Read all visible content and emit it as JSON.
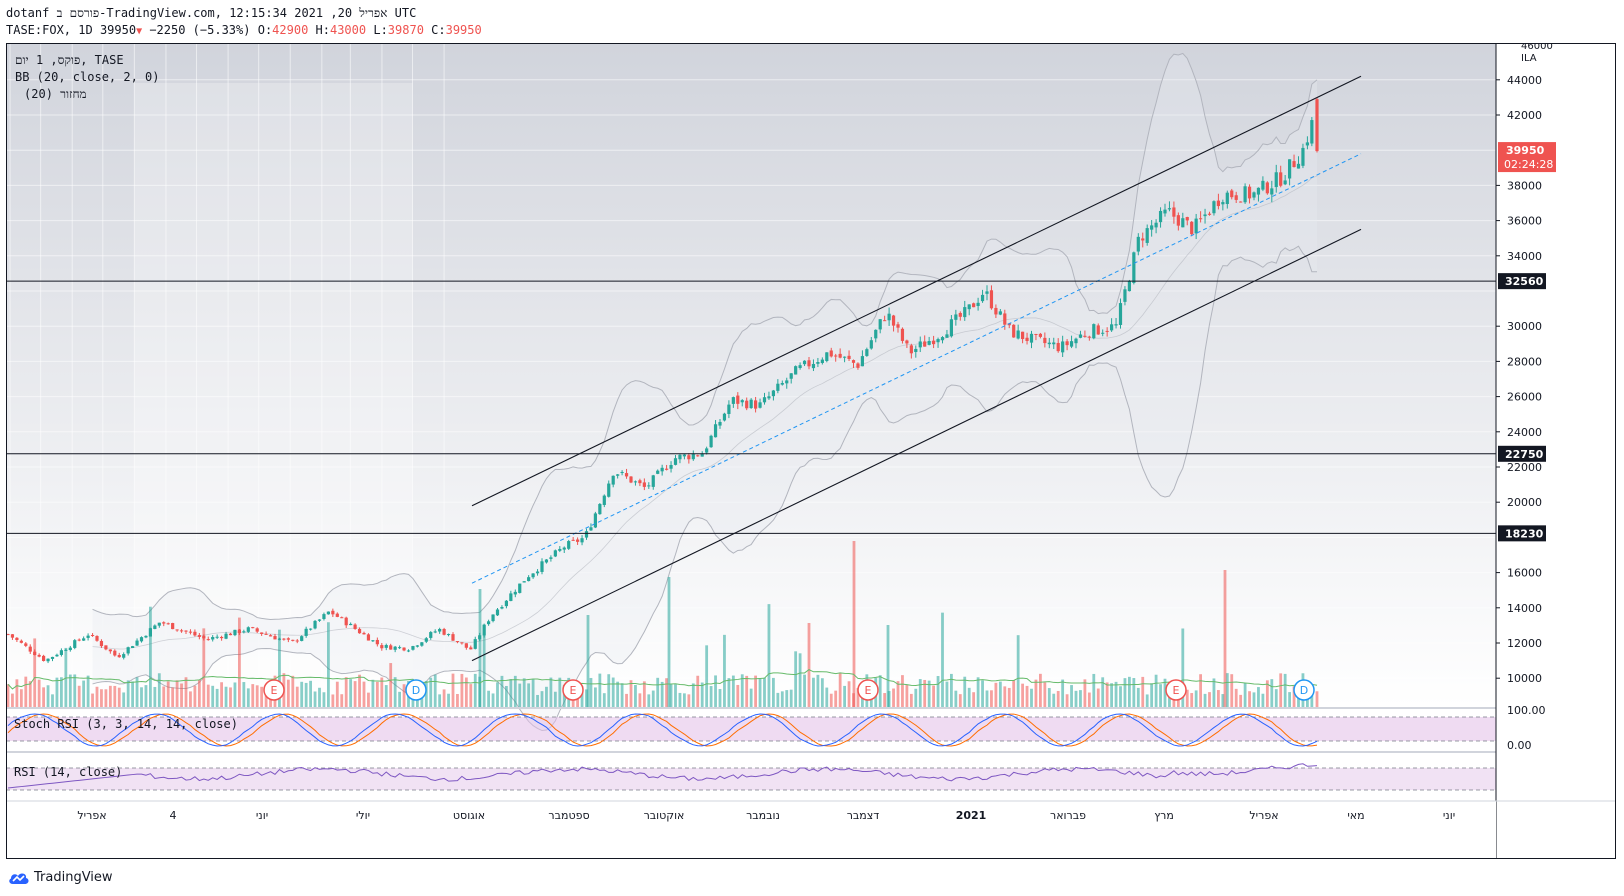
{
  "header": {
    "line1": "dotanf פורסם ב-TradingView.com, אפריל 20, 2021 12:15:34 UTC",
    "symbol": "TASE:FOX, 1D",
    "last": "39950",
    "change": "−2250 (−5.33%)",
    "o_label": "O:",
    "o": "42900",
    "h_label": "H:",
    "h": "43000",
    "l_label": "L:",
    "l": "39870",
    "c_label": "C:",
    "c": "39950"
  },
  "legend": {
    "line1": "פוקס, 1 יום, TASE",
    "line2": "BB (20, close, 2, 0)",
    "line3": "מחזור (20)"
  },
  "indicators": {
    "stoch_label": "Stoch RSI (3, 3, 14, 14, close)",
    "rsi_label": "RSI (14, close)",
    "stoch_ticks": [
      "100.00",
      "0.00"
    ]
  },
  "price_axis": {
    "currency": "ILA",
    "top_partial": "46000",
    "ticks": [
      44000,
      42000,
      38000,
      36000,
      34000,
      30000,
      28000,
      26000,
      24000,
      22000,
      20000,
      16000,
      14000,
      12000,
      10000
    ],
    "last_price_tag": "39950",
    "countdown_tag": "02:24:28",
    "level_tags": [
      "32560",
      "22750",
      "18230"
    ]
  },
  "time_axis": {
    "labels": [
      "אפריל",
      "4",
      "יוני",
      "יולי",
      "אוגוסט",
      "ספטמבר",
      "אוקטובר",
      "נובמבר",
      "דצמבר",
      "2021",
      "פברואר",
      "מרץ",
      "אפריל",
      "מאי",
      "יוני"
    ]
  },
  "events": [
    {
      "letter": "E"
    },
    {
      "letter": "D"
    },
    {
      "letter": "E"
    },
    {
      "letter": "E"
    },
    {
      "letter": "E"
    },
    {
      "letter": "D"
    }
  ],
  "footer": {
    "brand": "TradingView"
  },
  "colors": {
    "up": "#26a69a",
    "down": "#ef5350",
    "bb": "#b2b5be",
    "stoch_k": "#2962ff",
    "stoch_d": "#ff6d00",
    "rsi": "#7e57c2"
  },
  "chart_data": {
    "type": "candlestick",
    "title": "",
    "symbol": "TASE:FOX",
    "interval": "1D",
    "y_axis": {
      "min": 8000,
      "max": 46000,
      "unit": "ILA"
    },
    "horizontal_levels": [
      32560,
      22750,
      18230
    ],
    "channel": {
      "upper": [
        {
          "date": "2020-08-01",
          "price": 19800
        },
        {
          "date": "2021-05-01",
          "price": 44200
        }
      ],
      "lower": [
        {
          "date": "2020-08-01",
          "price": 11000
        },
        {
          "date": "2021-05-01",
          "price": 35500
        }
      ],
      "mid_dashed": [
        {
          "date": "2020-08-01",
          "price": 15400
        },
        {
          "date": "2021-05-01",
          "price": 39800
        }
      ]
    },
    "key_prices": [
      {
        "date": "2020-04",
        "close": 11500
      },
      {
        "date": "2020-07",
        "close": 12000
      },
      {
        "date": "2020-08",
        "close": 11500
      },
      {
        "date": "2020-09",
        "close": 17500
      },
      {
        "date": "2020-10",
        "close": 22000
      },
      {
        "date": "2020-11",
        "close": 26000
      },
      {
        "date": "2020-12",
        "close": 29000
      },
      {
        "date": "2021-01",
        "close": 31000
      },
      {
        "date": "2021-02",
        "close": 29000
      },
      {
        "date": "2021-03",
        "close": 35000
      },
      {
        "date": "2021-04",
        "close": 38000
      },
      {
        "date": "2021-04-20",
        "open": 42900,
        "high": 43000,
        "low": 39870,
        "close": 39950
      }
    ],
    "series": [
      {
        "name": "BB (20, close, 2, 0)"
      },
      {
        "name": "Stoch RSI (3, 3, 14, 14, close)"
      },
      {
        "name": "RSI (14, close)"
      }
    ]
  }
}
